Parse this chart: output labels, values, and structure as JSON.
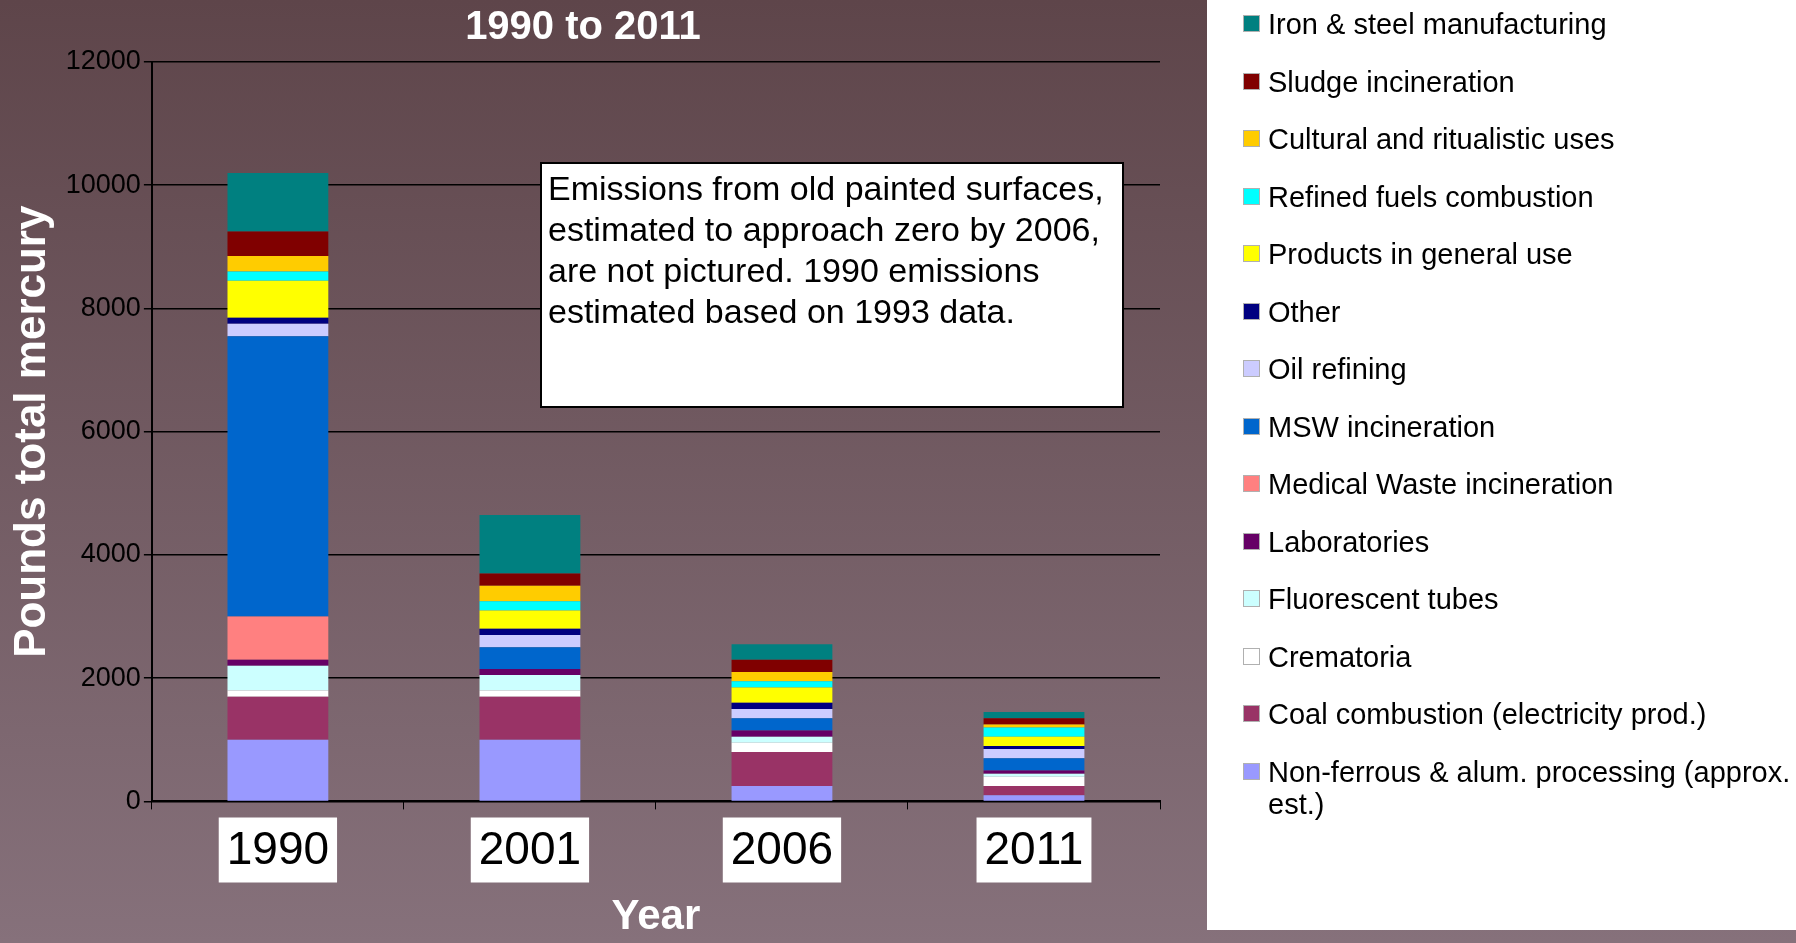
{
  "chart_data": {
    "type": "bar",
    "title": "1990 to 2011",
    "xlabel": "Year",
    "ylabel": "Pounds total mercury",
    "categories": [
      "1990",
      "2001",
      "2006",
      "2011"
    ],
    "stacked": true,
    "ylim": [
      0,
      12000
    ],
    "yticks": [
      0,
      2000,
      4000,
      6000,
      8000,
      10000,
      12000
    ],
    "grid": "y",
    "legend": "right",
    "annotations": [
      "Emissions from old painted surfaces, estimated to approach zero by 2006, are not pictured. 1990 emissions estimated based on 1993 data."
    ],
    "series": [
      {
        "name": "Non-ferrous & alum. processing (approx. est.)",
        "color": "#9999ff",
        "values": [
          1000,
          1000,
          250,
          100
        ]
      },
      {
        "name": "Coal combustion (electricity prod.)",
        "color": "#993366",
        "values": [
          700,
          700,
          550,
          150
        ]
      },
      {
        "name": "Crematoria",
        "color": "#ffffff",
        "values": [
          100,
          100,
          150,
          150
        ]
      },
      {
        "name": "Fluorescent tubes",
        "color": "#ccffff",
        "values": [
          400,
          250,
          100,
          50
        ]
      },
      {
        "name": "Laboratories",
        "color": "#660066",
        "values": [
          100,
          100,
          100,
          50
        ]
      },
      {
        "name": "Medical Waste incineration",
        "color": "#ff8080",
        "values": [
          700,
          0,
          0,
          0
        ]
      },
      {
        "name": "MSW incineration",
        "color": "#0066cc",
        "values": [
          4550,
          350,
          200,
          200
        ]
      },
      {
        "name": "Oil refining",
        "color": "#ccccff",
        "values": [
          200,
          200,
          150,
          150
        ]
      },
      {
        "name": "Other",
        "color": "#000080",
        "values": [
          100,
          100,
          100,
          50
        ]
      },
      {
        "name": "Products in general use",
        "color": "#ffff00",
        "values": [
          600,
          300,
          250,
          150
        ]
      },
      {
        "name": "Refined fuels combustion",
        "color": "#00ffff",
        "values": [
          150,
          150,
          100,
          150
        ]
      },
      {
        "name": "Cultural and ritualistic uses",
        "color": "#ffcc00",
        "values": [
          250,
          250,
          150,
          50
        ]
      },
      {
        "name": "Sludge incineration",
        "color": "#800000",
        "values": [
          400,
          200,
          200,
          100
        ]
      },
      {
        "name": "Iron & steel manufacturing",
        "color": "#008080",
        "values": [
          950,
          950,
          250,
          100
        ]
      }
    ]
  }
}
